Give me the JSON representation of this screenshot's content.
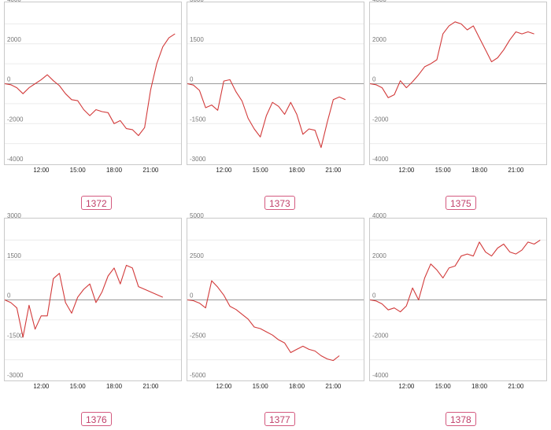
{
  "colors": {
    "line": "#d23a3a",
    "frame": "#c9c9c9",
    "grid": "#ececec",
    "zero": "#9a9a9a",
    "tick": "#777777",
    "xtick": "#222222",
    "tag_border": "#d45a7f",
    "tag_text": "#c0406a"
  },
  "chart_data": [
    {
      "type": "line",
      "label": "1372",
      "ylim": [
        -4000,
        4000
      ],
      "yticks": [
        4000,
        2000,
        0,
        -2000,
        -4000
      ],
      "xlim": [
        9.0,
        23.5
      ],
      "xticks": [
        "12:00",
        "15:00",
        "18:00",
        "21:00"
      ],
      "x": [
        9.0,
        9.5,
        10.0,
        10.5,
        11.0,
        11.5,
        12.0,
        12.5,
        13.0,
        13.5,
        14.0,
        14.5,
        15.0,
        15.5,
        16.0,
        16.5,
        17.0,
        17.5,
        18.0,
        18.5,
        19.0,
        19.5,
        20.0,
        20.5,
        21.0,
        21.5,
        22.0,
        22.5,
        23.0
      ],
      "y": [
        0,
        -50,
        -200,
        -500,
        -200,
        0,
        200,
        450,
        150,
        -100,
        -500,
        -800,
        -850,
        -1300,
        -1600,
        -1300,
        -1400,
        -1450,
        -2000,
        -1850,
        -2250,
        -2300,
        -2600,
        -2200,
        -300,
        1000,
        1850,
        2300,
        2500
      ]
    },
    {
      "type": "line",
      "label": "1373",
      "ylim": [
        -3000,
        3000
      ],
      "yticks": [
        3000,
        1500,
        0,
        -1500,
        -3000
      ],
      "xlim": [
        9.0,
        23.5
      ],
      "xticks": [
        "12:00",
        "15:00",
        "18:00",
        "21:00"
      ],
      "x": [
        9.0,
        9.5,
        10.0,
        10.5,
        11.0,
        11.5,
        12.0,
        12.5,
        13.0,
        13.5,
        14.0,
        14.5,
        15.0,
        15.5,
        16.0,
        16.5,
        17.0,
        17.5,
        18.0,
        18.5,
        19.0,
        19.5,
        20.0,
        20.5,
        21.0,
        21.5,
        22.0
      ],
      "y": [
        0,
        -50,
        -250,
        -900,
        -800,
        -1000,
        100,
        150,
        -300,
        -650,
        -1300,
        -1700,
        -2000,
        -1200,
        -700,
        -850,
        -1150,
        -700,
        -1150,
        -1900,
        -1700,
        -1750,
        -2400,
        -1450,
        -600,
        -500,
        -600
      ]
    },
    {
      "type": "line",
      "label": "1375",
      "ylim": [
        -4000,
        4000
      ],
      "yticks": [
        4000,
        2000,
        0,
        -2000,
        -4000
      ],
      "xlim": [
        9.0,
        23.5
      ],
      "xticks": [
        "12:00",
        "15:00",
        "18:00",
        "21:00"
      ],
      "x": [
        9.0,
        9.5,
        10.0,
        10.5,
        11.0,
        11.5,
        12.0,
        12.5,
        13.0,
        13.5,
        14.0,
        14.5,
        15.0,
        15.5,
        16.0,
        16.5,
        17.0,
        17.5,
        18.0,
        18.5,
        19.0,
        19.5,
        20.0,
        20.5,
        21.0,
        21.5,
        22.0,
        22.5
      ],
      "y": [
        0,
        -50,
        -200,
        -700,
        -550,
        150,
        -200,
        100,
        450,
        850,
        1000,
        1200,
        2500,
        2900,
        3100,
        3000,
        2700,
        2900,
        2300,
        1700,
        1100,
        1300,
        1700,
        2200,
        2600,
        2500,
        2600,
        2500
      ]
    },
    {
      "type": "line",
      "label": "1376",
      "ylim": [
        -3000,
        3000
      ],
      "yticks": [
        3000,
        1500,
        0,
        -1500,
        -3000
      ],
      "xlim": [
        9.0,
        23.5
      ],
      "xticks": [
        "12:00",
        "15:00",
        "18:00",
        "21:00"
      ],
      "x": [
        9.0,
        9.5,
        10.0,
        10.5,
        11.0,
        11.5,
        12.0,
        12.5,
        13.0,
        13.5,
        14.0,
        14.5,
        15.0,
        15.5,
        16.0,
        16.5,
        17.0,
        17.5,
        18.0,
        18.5,
        19.0,
        19.5,
        20.0,
        20.5,
        21.0,
        21.5,
        22.0
      ],
      "y": [
        0,
        -100,
        -300,
        -1400,
        -200,
        -1100,
        -600,
        -600,
        800,
        1000,
        -100,
        -500,
        100,
        400,
        600,
        -100,
        300,
        900,
        1200,
        600,
        1300,
        1200,
        500,
        400,
        300,
        200,
        100
      ]
    },
    {
      "type": "line",
      "label": "1377",
      "ylim": [
        -5000,
        5000
      ],
      "yticks": [
        5000,
        2500,
        0,
        -2500,
        -5000
      ],
      "xlim": [
        9.0,
        23.5
      ],
      "xticks": [
        "12:00",
        "15:00",
        "18:00",
        "21:00"
      ],
      "x": [
        9.0,
        9.5,
        10.0,
        10.5,
        11.0,
        11.5,
        12.0,
        12.5,
        13.0,
        13.5,
        14.0,
        14.5,
        15.0,
        15.5,
        16.0,
        16.5,
        17.0,
        17.5,
        18.0,
        18.5,
        19.0,
        19.5,
        20.0,
        20.5,
        21.0,
        21.5
      ],
      "y": [
        0,
        -50,
        -200,
        -500,
        1200,
        800,
        300,
        -400,
        -600,
        -900,
        -1200,
        -1700,
        -1800,
        -2000,
        -2200,
        -2500,
        -2700,
        -3300,
        -3100,
        -2900,
        -3100,
        -3200,
        -3500,
        -3700,
        -3800,
        -3500
      ]
    },
    {
      "type": "line",
      "label": "1378",
      "ylim": [
        -4000,
        4000
      ],
      "yticks": [
        4000,
        2000,
        0,
        -2000,
        -4000
      ],
      "xlim": [
        9.0,
        23.5
      ],
      "xticks": [
        "12:00",
        "15:00",
        "18:00",
        "21:00"
      ],
      "x": [
        9.0,
        9.5,
        10.0,
        10.5,
        11.0,
        11.5,
        12.0,
        12.5,
        13.0,
        13.5,
        14.0,
        14.5,
        15.0,
        15.5,
        16.0,
        16.5,
        17.0,
        17.5,
        18.0,
        18.5,
        19.0,
        19.5,
        20.0,
        20.5,
        21.0,
        21.5,
        22.0,
        22.5,
        23.0
      ],
      "y": [
        0,
        -50,
        -200,
        -500,
        -400,
        -600,
        -300,
        600,
        0,
        1100,
        1800,
        1500,
        1100,
        1600,
        1700,
        2200,
        2300,
        2200,
        2900,
        2400,
        2200,
        2600,
        2800,
        2400,
        2300,
        2500,
        2900,
        2800,
        3000
      ]
    }
  ]
}
